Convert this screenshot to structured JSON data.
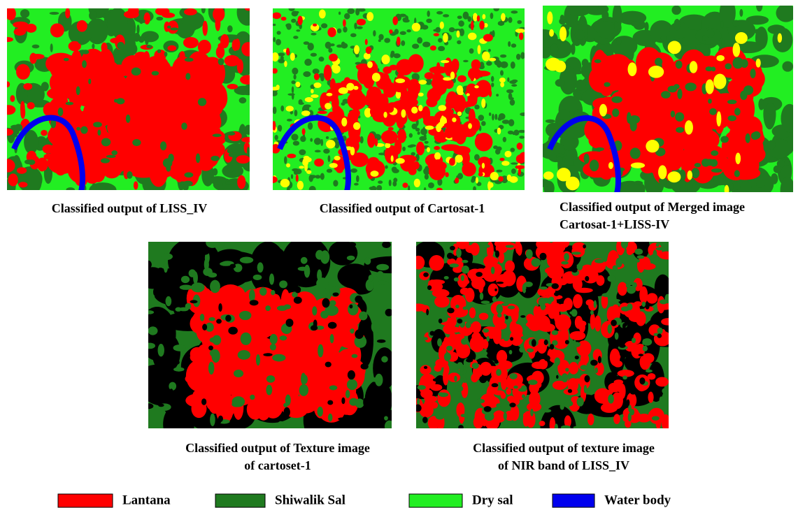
{
  "panels": [
    {
      "caption": [
        "Classified output of LISS_IV"
      ]
    },
    {
      "caption": [
        "Classified output of Cartosat-1"
      ]
    },
    {
      "caption": [
        "Classified output of Merged image",
        "Cartosat-1+LISS-IV"
      ]
    },
    {
      "caption": [
        "Classified output of Texture image",
        "of cartoset-1"
      ]
    },
    {
      "caption": [
        "Classified output of texture image",
        "of NIR band of LISS_IV"
      ]
    }
  ],
  "legend": [
    {
      "label": "Lantana",
      "color": "#ff0000"
    },
    {
      "label": "Shiwalik Sal",
      "color": "#1f7a1f"
    },
    {
      "label": "Dry sal",
      "color": "#22ee22"
    },
    {
      "label": "Water body",
      "color": "#0000ee"
    }
  ]
}
